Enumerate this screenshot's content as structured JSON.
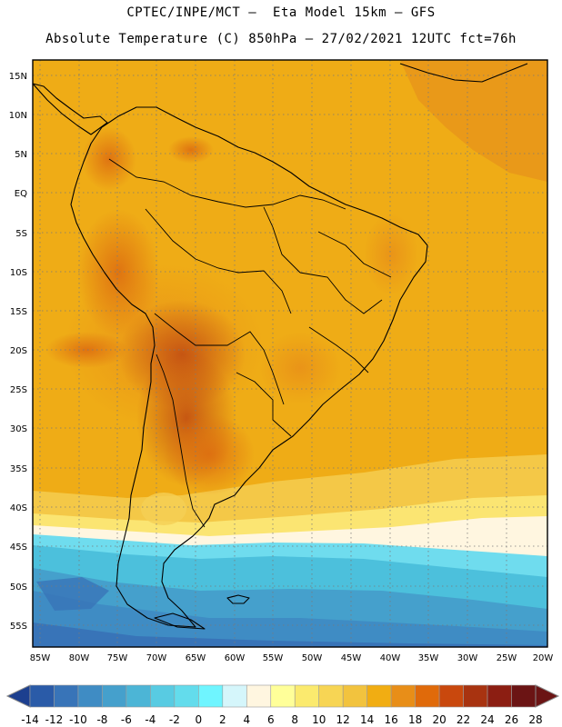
{
  "header": {
    "line1": "CPTEC/INPE/MCT –  Eta Model 15km – GFS",
    "line2": "Absolute Temperature (C) 850hPa – 27/02/2021 12UTC fct=76h"
  },
  "map": {
    "lat_labels": [
      "15N",
      "10N",
      "5N",
      "EQ",
      "5S",
      "10S",
      "15S",
      "20S",
      "25S",
      "30S",
      "35S",
      "40S",
      "45S",
      "50S",
      "55S"
    ],
    "lon_labels": [
      "85W",
      "80W",
      "75W",
      "70W",
      "65W",
      "60W",
      "55W",
      "50W",
      "45W",
      "40W",
      "35W",
      "30W",
      "25W",
      "20W"
    ]
  },
  "colorbar": {
    "labels": [
      "-14",
      "-12",
      "-10",
      "-8",
      "-6",
      "-4",
      "-2",
      "0",
      "2",
      "4",
      "6",
      "8",
      "10",
      "12",
      "14",
      "16",
      "18",
      "20",
      "22",
      "24",
      "26",
      "28"
    ],
    "colors": [
      "#1c3f8f",
      "#2a5ba8",
      "#3874b8",
      "#3f8cc4",
      "#45a0cc",
      "#4cb5d6",
      "#58cbe2",
      "#63dcec",
      "#6ff5ff",
      "#d5f6fb",
      "#fff6e0",
      "#ffff99",
      "#fbea6e",
      "#f7d554",
      "#f2c33e",
      "#f1ad12",
      "#e88e18",
      "#e06a0a",
      "#c9480d",
      "#a83310",
      "#8c1e12",
      "#6b1414"
    ]
  }
}
